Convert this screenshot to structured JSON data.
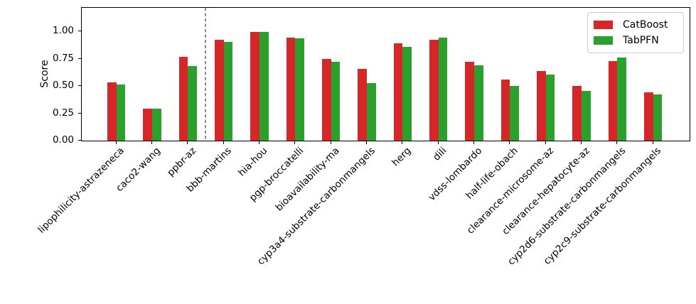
{
  "chart_data": {
    "type": "bar",
    "title": "",
    "ylabel": "Score",
    "categories": [
      "lipophilicity-astrazeneca",
      "caco2-wang",
      "ppbr-az",
      "bbb-martins",
      "hia-hou",
      "pgp-broccatelli",
      "bioavailability-ma",
      "cyp3a4-substrate-carbonmangels",
      "herg",
      "dili",
      "vdss-lombardo",
      "half-life-obach",
      "clearance-microsome-az",
      "clearance-hepatocyte-az",
      "cyp2d6-substrate-carbonmangels",
      "cyp2c9-substrate-carbonmangels"
    ],
    "series": [
      {
        "name": "CatBoost",
        "color": "#d62728",
        "values": [
          0.53,
          0.29,
          0.765,
          0.925,
          0.995,
          0.945,
          0.745,
          0.655,
          0.89,
          0.92,
          0.72,
          0.56,
          0.635,
          0.5,
          0.725,
          0.445
        ]
      },
      {
        "name": "TabPFN",
        "color": "#2ca02c",
        "values": [
          0.515,
          0.29,
          0.685,
          0.905,
          0.995,
          0.935,
          0.72,
          0.525,
          0.855,
          0.945,
          0.69,
          0.5,
          0.605,
          0.455,
          0.76,
          0.425
        ]
      }
    ],
    "ytick_labels": [
      "0.00",
      "0.25",
      "0.50",
      "0.75",
      "1.00"
    ],
    "ytick_values": [
      0,
      0.25,
      0.5,
      0.75,
      1.0
    ],
    "ylim": [
      0,
      1.215
    ],
    "grid": false,
    "legend": {
      "position": "upper right",
      "entries": [
        "CatBoost",
        "TabPFN"
      ]
    },
    "separator": {
      "style": "dashed",
      "color": "#8c8c8c",
      "between_category_indices": [
        2,
        3
      ]
    }
  }
}
